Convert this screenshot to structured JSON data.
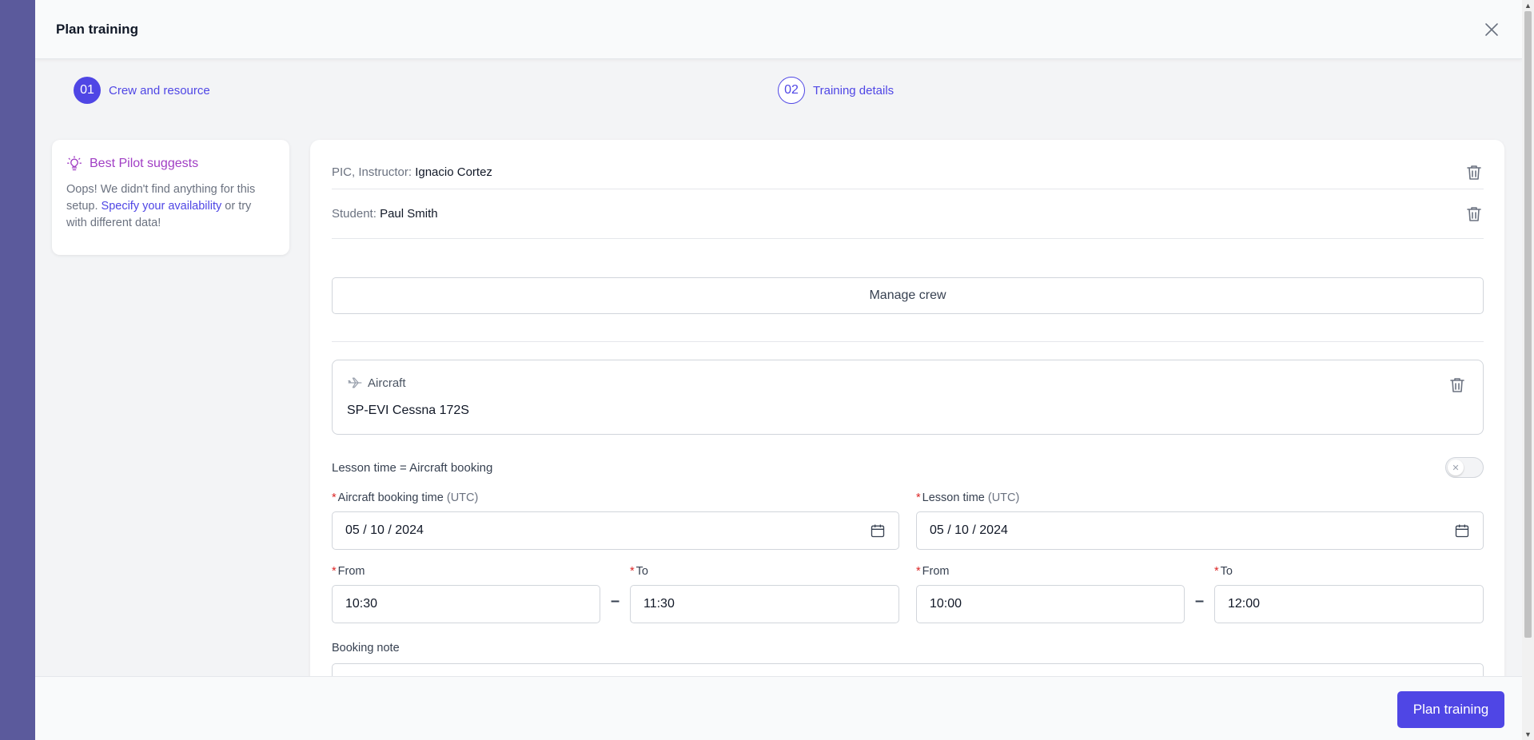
{
  "modal": {
    "title": "Plan training",
    "steps": [
      {
        "number": "01",
        "label": "Crew and resource",
        "active": true
      },
      {
        "number": "02",
        "label": "Training details",
        "active": false
      }
    ]
  },
  "suggestion": {
    "title": "Best Pilot suggests",
    "text_before": "Oops! We didn't find anything for this setup. ",
    "link": "Specify your availability",
    "text_after": " or try with different data!"
  },
  "crew": [
    {
      "role": "PIC, Instructor:",
      "name": "Ignacio Cortez"
    },
    {
      "role": "Student:",
      "name": "Paul Smith"
    }
  ],
  "manage_crew_label": "Manage crew",
  "aircraft": {
    "label": "Aircraft",
    "name": "SP-EVI Cessna 172S"
  },
  "lesson_equals_booking": {
    "label": "Lesson time = Aircraft booking",
    "enabled": false
  },
  "aircraft_booking": {
    "label": "Aircraft booking time",
    "unit": "(UTC)",
    "date": "05 / 10 / 2024",
    "from_label": "From",
    "from": "10:30",
    "to_label": "To",
    "to": "11:30"
  },
  "lesson_time": {
    "label": "Lesson time",
    "unit": "(UTC)",
    "date": "05 / 10 / 2024",
    "from_label": "From",
    "from": "10:00",
    "to_label": "To",
    "to": "12:00"
  },
  "booking_note": {
    "label": "Booking note",
    "value": ""
  },
  "footer": {
    "submit_label": "Plan training"
  },
  "colors": {
    "primary": "#4f46e5",
    "suggest": "#a03ec4",
    "required": "#dc2626"
  }
}
